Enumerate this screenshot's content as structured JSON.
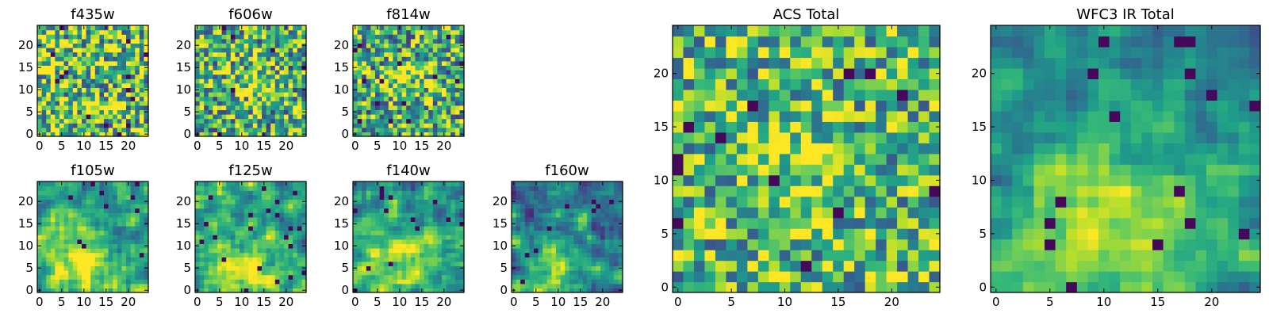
{
  "chart_data": [
    {
      "type": "heatmap",
      "title": "f435w",
      "colormap": "viridis",
      "grid_size": [
        25,
        25
      ],
      "x_ticks": [
        "0",
        "5",
        "10",
        "15",
        "20"
      ],
      "y_ticks": [
        "0",
        "5",
        "10",
        "15",
        "20"
      ],
      "xlim": [
        0,
        25
      ],
      "ylim": [
        0,
        25
      ],
      "pattern": "uniform noise, mostly yellow-green",
      "mean_level": 0.72,
      "spread": 0.5,
      "blob": null
    },
    {
      "type": "heatmap",
      "title": "f606w",
      "colormap": "viridis",
      "grid_size": [
        25,
        25
      ],
      "x_ticks": [
        "0",
        "5",
        "10",
        "15",
        "20"
      ],
      "y_ticks": [
        "0",
        "5",
        "10",
        "15",
        "20"
      ],
      "xlim": [
        0,
        25
      ],
      "ylim": [
        0,
        25
      ],
      "pattern": "noise, green with faint central bright region",
      "mean_level": 0.62,
      "spread": 0.45,
      "blob": {
        "x": 12,
        "y": 12,
        "amp": 0.15,
        "sigma": 4
      }
    },
    {
      "type": "heatmap",
      "title": "f814w",
      "colormap": "viridis",
      "grid_size": [
        25,
        25
      ],
      "x_ticks": [
        "0",
        "5",
        "10",
        "15",
        "20"
      ],
      "y_ticks": [
        "0",
        "5",
        "10",
        "15",
        "20"
      ],
      "xlim": [
        0,
        25
      ],
      "ylim": [
        0,
        25
      ],
      "pattern": "noise, green with faint central bright region",
      "mean_level": 0.6,
      "spread": 0.45,
      "blob": {
        "x": 11,
        "y": 12,
        "amp": 0.18,
        "sigma": 4
      }
    },
    {
      "type": "heatmap",
      "title": "f105w",
      "colormap": "viridis",
      "grid_size": [
        25,
        25
      ],
      "x_ticks": [
        "0",
        "5",
        "10",
        "15",
        "20"
      ],
      "y_ticks": [
        "0",
        "5",
        "10",
        "15",
        "20"
      ],
      "xlim": [
        0,
        25
      ],
      "ylim": [
        0,
        25
      ],
      "pattern": "smooth, bright region lower-center",
      "mean_level": 0.55,
      "spread": 0.3,
      "blob": {
        "x": 9,
        "y": 6,
        "amp": 0.35,
        "sigma": 6
      }
    },
    {
      "type": "heatmap",
      "title": "f125w",
      "colormap": "viridis",
      "grid_size": [
        25,
        25
      ],
      "x_ticks": [
        "0",
        "5",
        "10",
        "15",
        "20"
      ],
      "y_ticks": [
        "0",
        "5",
        "10",
        "15",
        "20"
      ],
      "xlim": [
        0,
        25
      ],
      "ylim": [
        0,
        25
      ],
      "pattern": "smooth, bright region lower-center",
      "mean_level": 0.55,
      "spread": 0.32,
      "blob": {
        "x": 10,
        "y": 6,
        "amp": 0.35,
        "sigma": 6
      }
    },
    {
      "type": "heatmap",
      "title": "f140w",
      "colormap": "viridis",
      "grid_size": [
        25,
        25
      ],
      "x_ticks": [
        "0",
        "5",
        "10",
        "15",
        "20"
      ],
      "y_ticks": [
        "0",
        "5",
        "10",
        "15",
        "20"
      ],
      "xlim": [
        0,
        25
      ],
      "ylim": [
        0,
        25
      ],
      "pattern": "smooth, bright region lower-center",
      "mean_level": 0.52,
      "spread": 0.32,
      "blob": {
        "x": 10,
        "y": 7,
        "amp": 0.35,
        "sigma": 6
      }
    },
    {
      "type": "heatmap",
      "title": "f160w",
      "colormap": "viridis",
      "grid_size": [
        25,
        25
      ],
      "x_ticks": [
        "0",
        "5",
        "10",
        "15",
        "20"
      ],
      "y_ticks": [
        "0",
        "5",
        "10",
        "15",
        "20"
      ],
      "xlim": [
        0,
        25
      ],
      "ylim": [
        0,
        25
      ],
      "pattern": "smooth, darker with bright region lower-center",
      "mean_level": 0.42,
      "spread": 0.3,
      "blob": {
        "x": 9,
        "y": 3,
        "amp": 0.45,
        "sigma": 5
      }
    },
    {
      "type": "heatmap",
      "title": "ACS Total",
      "colormap": "viridis",
      "grid_size": [
        25,
        25
      ],
      "x_ticks": [
        "0",
        "5",
        "10",
        "15",
        "20"
      ],
      "y_ticks": [
        "0",
        "5",
        "10",
        "15",
        "20"
      ],
      "xlim": [
        0,
        25
      ],
      "ylim": [
        0,
        25
      ],
      "pattern": "noise, green-yellow with scattered dark pixels",
      "mean_level": 0.66,
      "spread": 0.4,
      "blob": {
        "x": 11,
        "y": 12,
        "amp": 0.15,
        "sigma": 4
      }
    },
    {
      "type": "heatmap",
      "title": "WFC3 IR Total",
      "colormap": "viridis",
      "grid_size": [
        25,
        25
      ],
      "x_ticks": [
        "0",
        "5",
        "10",
        "15",
        "20"
      ],
      "y_ticks": [
        "0",
        "5",
        "10",
        "15",
        "20"
      ],
      "xlim": [
        0,
        25
      ],
      "ylim": [
        0,
        25
      ],
      "pattern": "smooth, teal with bright region lower-center",
      "mean_level": 0.48,
      "spread": 0.22,
      "blob": {
        "x": 10,
        "y": 5,
        "amp": 0.45,
        "sigma": 6
      }
    }
  ]
}
